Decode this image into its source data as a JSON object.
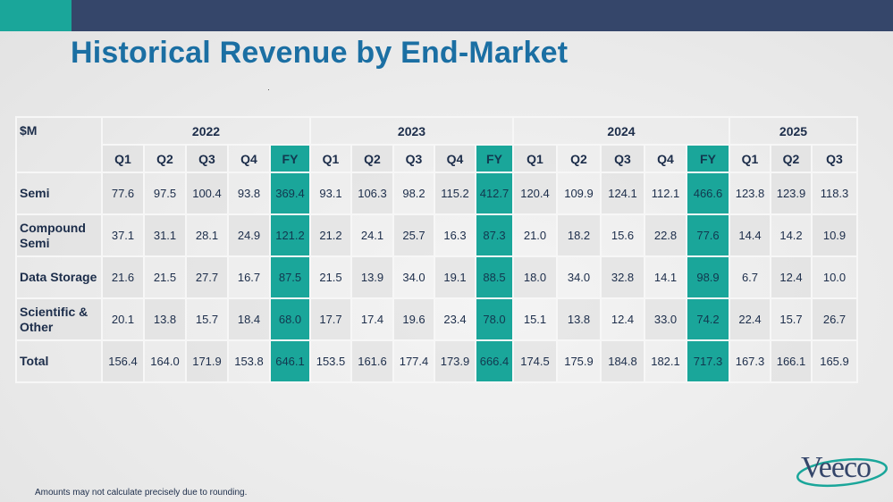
{
  "title": "Historical Revenue by End-Market",
  "table": {
    "unit_label": "$M",
    "years": [
      {
        "label": "2022",
        "span": 5
      },
      {
        "label": "2023",
        "span": 5
      },
      {
        "label": "2024",
        "span": 5
      },
      {
        "label": "2025",
        "span": 3
      }
    ],
    "columns": [
      "Q1",
      "Q2",
      "Q3",
      "Q4",
      "FY",
      "Q1",
      "Q2",
      "Q3",
      "Q4",
      "FY",
      "Q1",
      "Q2",
      "Q3",
      "Q4",
      "FY",
      "Q1",
      "Q2",
      "Q3"
    ],
    "rows": [
      {
        "label": "Semi",
        "values": [
          "77.6",
          "97.5",
          "100.4",
          "93.8",
          "369.4",
          "93.1",
          "106.3",
          "98.2",
          "115.2",
          "412.7",
          "120.4",
          "109.9",
          "124.1",
          "112.1",
          "466.6",
          "123.8",
          "123.9",
          "118.3"
        ]
      },
      {
        "label": "Compound Semi",
        "values": [
          "37.1",
          "31.1",
          "28.1",
          "24.9",
          "121.2",
          "21.2",
          "24.1",
          "25.7",
          "16.3",
          "87.3",
          "21.0",
          "18.2",
          "15.6",
          "22.8",
          "77.6",
          "14.4",
          "14.2",
          "10.9"
        ]
      },
      {
        "label": "Data Storage",
        "values": [
          "21.6",
          "21.5",
          "27.7",
          "16.7",
          "87.5",
          "21.5",
          "13.9",
          "34.0",
          "19.1",
          "88.5",
          "18.0",
          "34.0",
          "32.8",
          "14.1",
          "98.9",
          "6.7",
          "12.4",
          "10.0"
        ]
      },
      {
        "label": "Scientific & Other",
        "values": [
          "20.1",
          "13.8",
          "15.7",
          "18.4",
          "68.0",
          "17.7",
          "17.4",
          "19.6",
          "23.4",
          "78.0",
          "15.1",
          "13.8",
          "12.4",
          "33.0",
          "74.2",
          "22.4",
          "15.7",
          "26.7"
        ]
      },
      {
        "label": "Total",
        "values": [
          "156.4",
          "164.0",
          "171.9",
          "153.8",
          "646.1",
          "153.5",
          "161.6",
          "177.4",
          "173.9",
          "666.4",
          "174.5",
          "175.9",
          "184.8",
          "182.1",
          "717.3",
          "167.3",
          "166.1",
          "165.9"
        ]
      }
    ]
  },
  "footnote": "Amounts may not calculate precisely due to rounding.",
  "logo_text": "Veeco",
  "colors": {
    "accent": "#1aa69a",
    "navy": "#35466a",
    "title": "#1b6fa3"
  }
}
